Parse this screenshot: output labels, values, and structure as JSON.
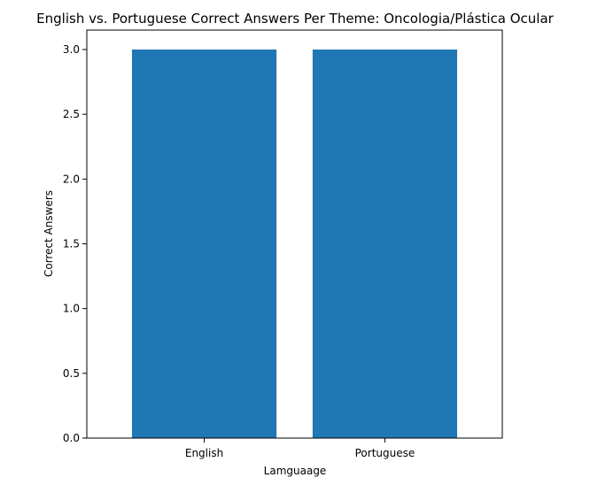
{
  "chart_data": {
    "type": "bar",
    "title": "English vs. Portuguese Correct Answers Per Theme: Oncologia/Plástica Ocular",
    "xlabel": "Lamguaage",
    "ylabel": "Correct Answers",
    "categories": [
      "English",
      "Portuguese"
    ],
    "values": [
      3,
      3
    ],
    "ylim": [
      0,
      3.15
    ],
    "yticks": [
      "0.0",
      "0.5",
      "1.0",
      "1.5",
      "2.0",
      "2.5",
      "3.0"
    ],
    "grid": false,
    "bar_color": "#1f77b4"
  }
}
